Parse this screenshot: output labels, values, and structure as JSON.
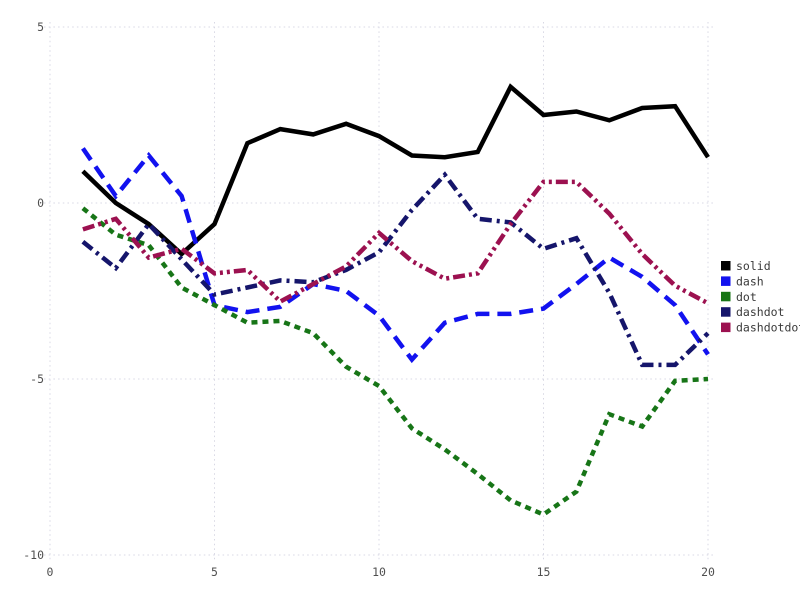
{
  "chart_data": {
    "type": "line",
    "title": "",
    "xlabel": "",
    "ylabel": "",
    "xlim": [
      0,
      20
    ],
    "ylim": [
      -10,
      5
    ],
    "xticks": [
      0,
      5,
      10,
      15,
      20
    ],
    "yticks": [
      -10,
      -5,
      0,
      5
    ],
    "grid": true,
    "grid_style": "dotted",
    "legend_position": "right",
    "background": "#ffffff",
    "grid_color": "#d8d8e4",
    "tick_label_color": "#4f4f4f",
    "x": [
      1,
      2,
      3,
      4,
      5,
      6,
      7,
      8,
      9,
      10,
      11,
      12,
      13,
      14,
      15,
      16,
      17,
      18,
      19,
      20
    ],
    "series": [
      {
        "name": "solid",
        "color": "#000000",
        "dash": "solid",
        "values": [
          0.9,
          0.0,
          -0.6,
          -1.45,
          -0.6,
          1.7,
          2.1,
          1.95,
          2.25,
          1.9,
          1.35,
          1.3,
          1.45,
          3.3,
          2.5,
          2.6,
          2.35,
          2.7,
          2.75,
          1.3
        ]
      },
      {
        "name": "dash",
        "color": "#1212ef",
        "dash": "dash",
        "values": [
          1.55,
          0.2,
          1.35,
          0.2,
          -2.9,
          -3.1,
          -2.95,
          -2.3,
          -2.5,
          -3.2,
          -4.45,
          -3.4,
          -3.15,
          -3.15,
          -3.0,
          -2.3,
          -1.55,
          -2.1,
          -2.9,
          -4.3
        ]
      },
      {
        "name": "dot",
        "color": "#177517",
        "dash": "dot",
        "values": [
          -0.15,
          -0.9,
          -1.2,
          -2.4,
          -2.9,
          -3.4,
          -3.35,
          -3.7,
          -4.65,
          -5.2,
          -6.4,
          -7.0,
          -7.7,
          -8.45,
          -8.85,
          -8.2,
          -6.0,
          -6.35,
          -5.05,
          -5.0
        ]
      },
      {
        "name": "dashdot",
        "color": "#15156b",
        "dash": "dashdot",
        "values": [
          -1.1,
          -1.85,
          -0.6,
          -1.6,
          -2.6,
          -2.4,
          -2.2,
          -2.25,
          -1.9,
          -1.4,
          -0.2,
          0.8,
          -0.45,
          -0.55,
          -1.3,
          -1.0,
          -2.55,
          -4.6,
          -4.6,
          -3.7
        ]
      },
      {
        "name": "dashdotdot",
        "color": "#9c1150",
        "dash": "dashdotdot",
        "values": [
          -0.75,
          -0.45,
          -1.55,
          -1.3,
          -2.0,
          -1.9,
          -2.8,
          -2.3,
          -1.8,
          -0.85,
          -1.65,
          -2.15,
          -2.0,
          -0.6,
          0.6,
          0.6,
          -0.3,
          -1.45,
          -2.35,
          -2.85
        ]
      }
    ]
  },
  "legend": {
    "entries": [
      {
        "label": "solid",
        "color": "#000000"
      },
      {
        "label": "dash",
        "color": "#1212ef"
      },
      {
        "label": "dot",
        "color": "#177515"
      },
      {
        "label": "dashdot",
        "color": "#15156b"
      },
      {
        "label": "dashdotdot",
        "color": "#9c1150"
      }
    ]
  },
  "axes": {
    "x_tick_labels": [
      "0",
      "5",
      "10",
      "15",
      "20"
    ],
    "y_tick_labels": [
      "-10",
      "-5",
      "0",
      "5"
    ]
  }
}
